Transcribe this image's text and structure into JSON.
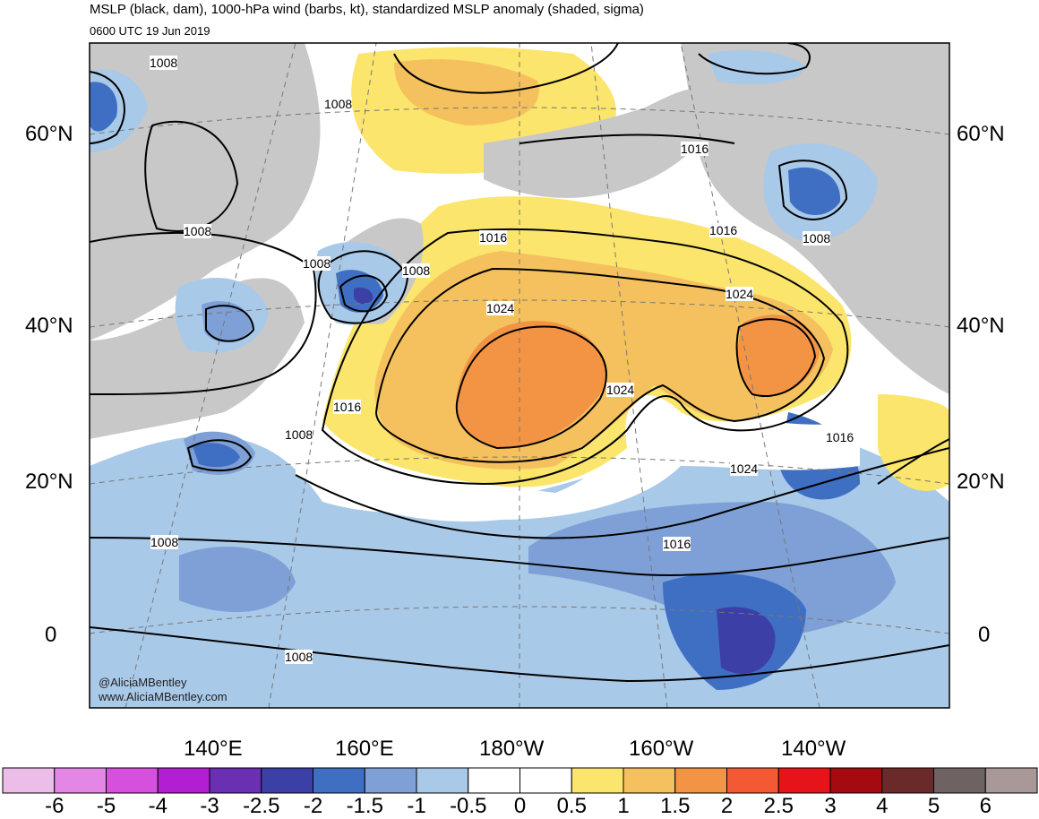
{
  "header": {
    "title": "MSLP (black, dam), 1000-hPa wind (barbs, kt), standardized MSLP anomaly (shaded, sigma)",
    "valid_time": "0600 UTC 19 Jun 2019"
  },
  "lat_labels": [
    "60°N",
    "40°N",
    "20°N",
    "0"
  ],
  "lon_labels": [
    "140°E",
    "160°E",
    "180°W",
    "160°W",
    "140°W"
  ],
  "isobar_labels": [
    "1008",
    "1008",
    "1008",
    "1008",
    "1008",
    "1008",
    "1008",
    "1008",
    "1016",
    "1016",
    "1016",
    "1016",
    "1016",
    "1024",
    "1024",
    "1024",
    "1024",
    "1016",
    "1008"
  ],
  "credit": {
    "handle": "@AliciaMBentley",
    "site": "www.AliciaMBentley.com"
  },
  "colorbar": {
    "labels": [
      "-6",
      "-5",
      "-4",
      "-3",
      "-2.5",
      "-2",
      "-1.5",
      "-1",
      "-0.5",
      "0",
      "0.5",
      "1",
      "1.5",
      "2",
      "2.5",
      "3",
      "4",
      "5",
      "6"
    ],
    "colors": [
      "#ebbde8",
      "#e486e6",
      "#d64fde",
      "#b21ed1",
      "#6a2fb3",
      "#3c3fa6",
      "#3f6fc3",
      "#7ea0d7",
      "#a9c9e8",
      "#ffffff",
      "#ffffff",
      "#fbe56c",
      "#f5c15e",
      "#f39444",
      "#f35a34",
      "#e6141a",
      "#a40a10",
      "#6b2a2a",
      "#6e6262",
      "#a89898"
    ]
  },
  "colors": {
    "land": "#c8c8c8",
    "isobar": "#000000",
    "gridline": "#777777"
  }
}
